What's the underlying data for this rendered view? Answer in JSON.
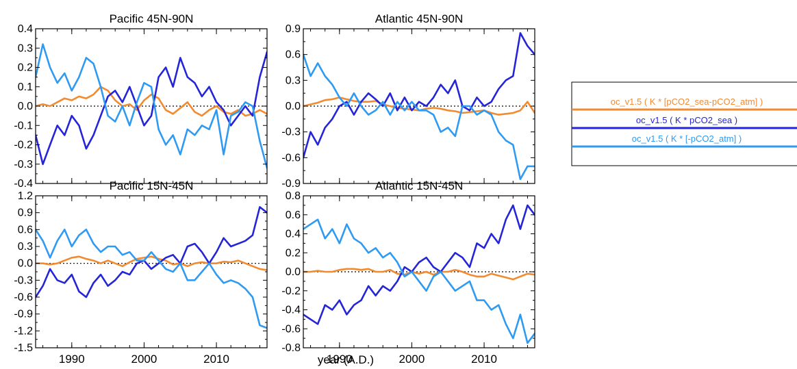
{
  "colors": {
    "orange": "#f28a30",
    "dark_blue": "#2424d8",
    "light_blue": "#2e9af2",
    "axis": "#000000",
    "zero_line": "#000000"
  },
  "figure": {
    "xlabel": "year (A.D.)"
  },
  "legend": {
    "entries": [
      {
        "label": "oc_v1.5 ( K * [pCO2_sea-pCO2_atm] )",
        "color": "#f28a30"
      },
      {
        "label": "oc_v1.5 ( K * pCO2_sea )",
        "color": "#2424d8"
      },
      {
        "label": "oc_v1.5 ( K * [-pCO2_atm] )",
        "color": "#2e9af2"
      }
    ]
  },
  "chart_data": [
    {
      "type": "line",
      "title": "Pacific 45N-90N",
      "xlim": [
        1985,
        2017
      ],
      "ylim": [
        -0.4,
        0.4
      ],
      "xticks": [
        1990,
        2000,
        2010
      ],
      "xtick_labels": [
        "",
        "",
        ""
      ],
      "yticks": [
        -0.4,
        -0.3,
        -0.2,
        -0.1,
        0.0,
        0.1,
        0.2,
        0.3,
        0.4
      ],
      "ytick_labels": [
        "-0.4",
        "-0.3",
        "-0.2",
        "-0.1",
        "0.0",
        "0.1",
        "0.2",
        "0.3",
        "0.4"
      ],
      "zero_line": true,
      "x": [
        1985,
        1986,
        1987,
        1988,
        1989,
        1990,
        1991,
        1992,
        1993,
        1994,
        1995,
        1996,
        1997,
        1998,
        1999,
        2000,
        2001,
        2002,
        2003,
        2004,
        2005,
        2006,
        2007,
        2008,
        2009,
        2010,
        2011,
        2012,
        2013,
        2014,
        2015,
        2016,
        2017
      ],
      "series": [
        {
          "key": "sea_atm",
          "color": "#f28a30",
          "values": [
            0.0,
            0.01,
            0.0,
            0.02,
            0.04,
            0.03,
            0.05,
            0.04,
            0.06,
            0.1,
            0.08,
            0.03,
            0.0,
            0.01,
            -0.02,
            0.03,
            0.06,
            0.04,
            -0.02,
            -0.04,
            -0.01,
            0.02,
            -0.03,
            -0.05,
            -0.02,
            0.0,
            -0.03,
            -0.04,
            -0.02,
            -0.05,
            -0.04,
            -0.02,
            -0.04
          ]
        },
        {
          "key": "sea",
          "color": "#2424d8",
          "values": [
            -0.15,
            -0.3,
            -0.2,
            -0.1,
            -0.15,
            -0.05,
            -0.1,
            -0.22,
            -0.15,
            -0.05,
            0.05,
            0.08,
            0.02,
            0.1,
            0.0,
            -0.1,
            -0.05,
            0.15,
            0.2,
            0.1,
            0.25,
            0.15,
            0.12,
            0.05,
            0.1,
            0.02,
            -0.02,
            -0.1,
            -0.05,
            0.0,
            -0.05,
            0.15,
            0.28
          ]
        },
        {
          "key": "atm",
          "color": "#2e9af2",
          "values": [
            0.15,
            0.32,
            0.2,
            0.12,
            0.17,
            0.08,
            0.15,
            0.25,
            0.22,
            0.1,
            -0.05,
            -0.08,
            0.0,
            -0.1,
            0.02,
            0.12,
            0.1,
            -0.12,
            -0.2,
            -0.15,
            -0.25,
            -0.12,
            -0.15,
            -0.1,
            -0.12,
            -0.02,
            -0.25,
            -0.05,
            -0.03,
            0.02,
            0.0,
            -0.18,
            -0.32
          ]
        }
      ]
    },
    {
      "type": "line",
      "title": "Atlantic 45N-90N",
      "xlim": [
        1985,
        2017
      ],
      "ylim": [
        -0.9,
        0.9
      ],
      "xticks": [
        1990,
        2000,
        2010
      ],
      "xtick_labels": [
        "",
        "",
        ""
      ],
      "yticks": [
        -0.9,
        -0.6,
        -0.3,
        0.0,
        0.3,
        0.6,
        0.9
      ],
      "ytick_labels": [
        "-0.9",
        "-0.6",
        "-0.3",
        "0.0",
        "0.3",
        "0.6",
        "0.9"
      ],
      "zero_line": true,
      "x": [
        1985,
        1986,
        1987,
        1988,
        1989,
        1990,
        1991,
        1992,
        1993,
        1994,
        1995,
        1996,
        1997,
        1998,
        1999,
        2000,
        2001,
        2002,
        2003,
        2004,
        2005,
        2006,
        2007,
        2008,
        2009,
        2010,
        2011,
        2012,
        2013,
        2014,
        2015,
        2016,
        2017
      ],
      "series": [
        {
          "key": "sea_atm",
          "color": "#f28a30",
          "values": [
            0.0,
            0.02,
            0.04,
            0.07,
            0.08,
            0.1,
            0.08,
            0.06,
            0.05,
            0.05,
            0.06,
            0.02,
            0.0,
            -0.02,
            -0.03,
            -0.04,
            -0.05,
            -0.03,
            -0.02,
            -0.03,
            -0.05,
            -0.06,
            -0.08,
            -0.07,
            -0.06,
            -0.05,
            -0.08,
            -0.1,
            -0.09,
            -0.08,
            -0.05,
            0.05,
            -0.08
          ]
        },
        {
          "key": "sea",
          "color": "#2424d8",
          "values": [
            -0.6,
            -0.3,
            -0.45,
            -0.25,
            -0.15,
            0.0,
            0.05,
            -0.1,
            0.05,
            0.15,
            0.08,
            0.0,
            0.15,
            -0.05,
            0.1,
            -0.05,
            0.05,
            0.0,
            0.1,
            0.25,
            0.15,
            0.3,
            0.0,
            -0.05,
            0.1,
            0.0,
            0.05,
            0.2,
            0.3,
            0.35,
            0.85,
            0.7,
            0.6
          ]
        },
        {
          "key": "atm",
          "color": "#2e9af2",
          "values": [
            0.6,
            0.35,
            0.5,
            0.35,
            0.25,
            0.1,
            0.0,
            0.15,
            0.0,
            -0.1,
            -0.05,
            0.05,
            -0.1,
            0.05,
            -0.05,
            0.05,
            -0.05,
            -0.05,
            -0.1,
            -0.3,
            -0.25,
            -0.35,
            0.0,
            0.0,
            -0.1,
            -0.05,
            -0.1,
            -0.3,
            -0.4,
            -0.45,
            -0.85,
            -0.7,
            -0.7
          ]
        }
      ]
    },
    {
      "type": "line",
      "title": "Pacific 15N-45N",
      "xlim": [
        1985,
        2017
      ],
      "ylim": [
        -1.5,
        1.2
      ],
      "xticks": [
        1990,
        2000,
        2010
      ],
      "xtick_labels": [
        "1990",
        "2000",
        "2010"
      ],
      "yticks": [
        -1.5,
        -1.2,
        -0.9,
        -0.6,
        -0.3,
        0.0,
        0.3,
        0.6,
        0.9,
        1.2
      ],
      "ytick_labels": [
        "-1.5",
        "-1.2",
        "-0.9",
        "-0.6",
        "-0.3",
        "0.0",
        "0.3",
        "0.6",
        "0.9",
        "1.2"
      ],
      "zero_line": true,
      "x": [
        1985,
        1986,
        1987,
        1988,
        1989,
        1990,
        1991,
        1992,
        1993,
        1994,
        1995,
        1996,
        1997,
        1998,
        1999,
        2000,
        2001,
        2002,
        2003,
        2004,
        2005,
        2006,
        2007,
        2008,
        2009,
        2010,
        2011,
        2012,
        2013,
        2014,
        2015,
        2016,
        2017
      ],
      "series": [
        {
          "key": "sea_atm",
          "color": "#f28a30",
          "values": [
            0.0,
            0.0,
            -0.02,
            0.0,
            0.05,
            0.1,
            0.12,
            0.08,
            0.05,
            0.0,
            0.05,
            0.0,
            -0.05,
            0.02,
            0.08,
            0.1,
            0.12,
            0.08,
            0.05,
            -0.02,
            0.0,
            -0.05,
            0.0,
            0.02,
            0.0,
            0.0,
            0.03,
            0.02,
            0.05,
            0.0,
            -0.05,
            -0.1,
            -0.12
          ]
        },
        {
          "key": "sea",
          "color": "#2424d8",
          "values": [
            -0.6,
            -0.4,
            -0.1,
            -0.3,
            -0.35,
            -0.2,
            -0.5,
            -0.6,
            -0.35,
            -0.2,
            -0.4,
            -0.3,
            -0.15,
            -0.2,
            0.0,
            0.05,
            -0.1,
            0.0,
            0.1,
            0.15,
            0.0,
            0.3,
            0.35,
            0.2,
            0.0,
            0.2,
            0.45,
            0.3,
            0.35,
            0.4,
            0.5,
            1.0,
            0.9
          ]
        },
        {
          "key": "atm",
          "color": "#2e9af2",
          "values": [
            0.6,
            0.4,
            0.1,
            0.4,
            0.6,
            0.3,
            0.5,
            0.6,
            0.35,
            0.2,
            0.3,
            0.3,
            0.15,
            0.2,
            0.05,
            0.05,
            0.2,
            0.05,
            -0.1,
            -0.15,
            0.0,
            -0.3,
            -0.3,
            -0.15,
            0.0,
            -0.2,
            -0.35,
            -0.3,
            -0.35,
            -0.45,
            -0.6,
            -1.1,
            -1.15
          ]
        }
      ]
    },
    {
      "type": "line",
      "title": "Atlantic 15N-45N",
      "xlim": [
        1985,
        2017
      ],
      "ylim": [
        -0.8,
        0.8
      ],
      "xticks": [
        1990,
        2000,
        2010
      ],
      "xtick_labels": [
        "1990",
        "2000",
        "2010"
      ],
      "yticks": [
        -0.8,
        -0.6,
        -0.4,
        -0.2,
        0.0,
        0.2,
        0.4,
        0.6,
        0.8
      ],
      "ytick_labels": [
        "-0.8",
        "-0.6",
        "-0.4",
        "-0.2",
        "0.0",
        "0.2",
        "0.4",
        "0.6",
        "0.8"
      ],
      "zero_line": true,
      "x": [
        1985,
        1986,
        1987,
        1988,
        1989,
        1990,
        1991,
        1992,
        1993,
        1994,
        1995,
        1996,
        1997,
        1998,
        1999,
        2000,
        2001,
        2002,
        2003,
        2004,
        2005,
        2006,
        2007,
        2008,
        2009,
        2010,
        2011,
        2012,
        2013,
        2014,
        2015,
        2016,
        2017
      ],
      "series": [
        {
          "key": "sea_atm",
          "color": "#f28a30",
          "values": [
            0.0,
            0.0,
            0.01,
            0.0,
            0.0,
            0.02,
            0.03,
            0.03,
            0.02,
            0.03,
            0.0,
            0.0,
            0.02,
            -0.02,
            -0.03,
            0.0,
            -0.02,
            0.0,
            -0.03,
            0.0,
            0.0,
            0.02,
            0.0,
            -0.03,
            -0.05,
            -0.05,
            -0.02,
            -0.04,
            -0.06,
            -0.08,
            -0.05,
            -0.02,
            -0.03
          ]
        },
        {
          "key": "sea",
          "color": "#2424d8",
          "values": [
            -0.45,
            -0.5,
            -0.55,
            -0.35,
            -0.4,
            -0.3,
            -0.45,
            -0.35,
            -0.3,
            -0.15,
            -0.25,
            -0.15,
            -0.2,
            -0.1,
            0.05,
            0.0,
            0.1,
            0.15,
            0.05,
            0.0,
            0.1,
            0.2,
            0.15,
            0.05,
            0.3,
            0.25,
            0.4,
            0.3,
            0.55,
            0.7,
            0.45,
            0.7,
            0.6
          ]
        },
        {
          "key": "atm",
          "color": "#2e9af2",
          "values": [
            0.45,
            0.5,
            0.55,
            0.35,
            0.45,
            0.3,
            0.5,
            0.35,
            0.3,
            0.2,
            0.25,
            0.15,
            0.2,
            0.1,
            -0.05,
            0.0,
            -0.1,
            -0.2,
            -0.05,
            0.0,
            -0.1,
            -0.2,
            -0.15,
            -0.1,
            -0.3,
            -0.3,
            -0.4,
            -0.35,
            -0.55,
            -0.7,
            -0.45,
            -0.75,
            -0.65
          ]
        }
      ]
    }
  ]
}
